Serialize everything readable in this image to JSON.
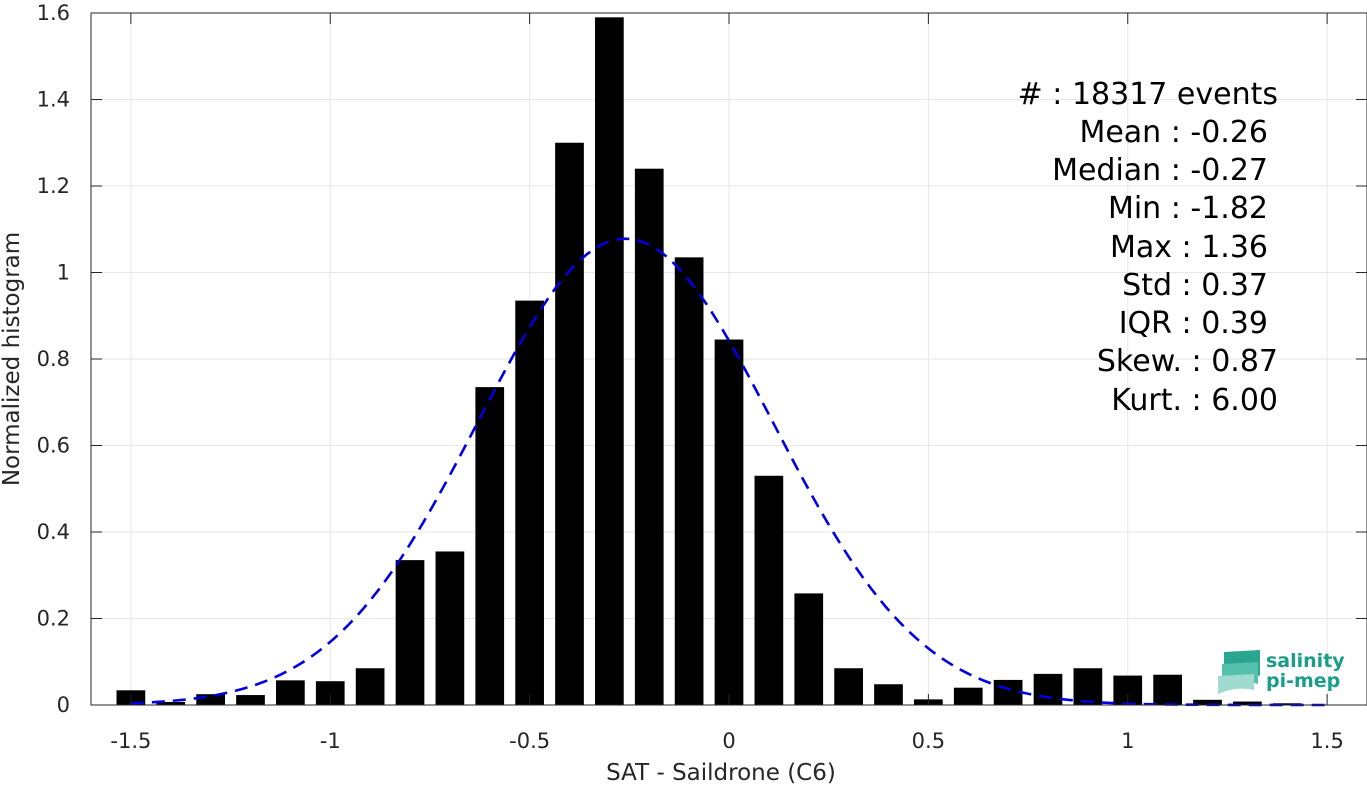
{
  "chart_data": {
    "type": "bar",
    "xlabel": "SAT - Saildrone (C6)",
    "ylabel": "Normalized histogram",
    "xlim": [
      -1.6,
      1.6
    ],
    "ylim": [
      0,
      1.6
    ],
    "xticks": [
      -1.5,
      -1,
      -0.5,
      0,
      0.5,
      1,
      1.5
    ],
    "xtick_labels": [
      "-1.5",
      "-1",
      "-0.5",
      "0",
      "0.5",
      "1",
      "1.5"
    ],
    "yticks": [
      0,
      0.2,
      0.4,
      0.6,
      0.8,
      1,
      1.2,
      1.4,
      1.6
    ],
    "ytick_labels": [
      "0",
      "0.2",
      "0.4",
      "0.6",
      "0.8",
      "1",
      "1.2",
      "1.4",
      "1.6"
    ],
    "grid": true,
    "bar_color": "#000000",
    "bars": {
      "x": [
        -1.5,
        -1.4,
        -1.3,
        -1.2,
        -1.1,
        -1.0,
        -0.9,
        -0.8,
        -0.7,
        -0.6,
        -0.5,
        -0.4,
        -0.3,
        -0.2,
        -0.1,
        0.0,
        0.1,
        0.2,
        0.3,
        0.4,
        0.5,
        0.6,
        0.7,
        0.8,
        0.9,
        1.0,
        1.1,
        1.2,
        1.3,
        1.4
      ],
      "values": [
        0.034,
        0.007,
        0.025,
        0.023,
        0.057,
        0.055,
        0.085,
        0.335,
        0.355,
        0.735,
        0.935,
        1.3,
        1.59,
        1.24,
        1.035,
        0.845,
        0.53,
        0.258,
        0.085,
        0.048,
        0.013,
        0.04,
        0.058,
        0.072,
        0.085,
        0.068,
        0.07,
        0.012,
        0.008,
        0.004
      ]
    },
    "fit_curve": {
      "type": "gaussian",
      "color": "#0000e0",
      "style": "dashed",
      "mean": -0.26,
      "std": 0.37,
      "x_range": [
        -1.5,
        1.5
      ]
    },
    "annotations": [
      "#  : 18317 events",
      "Mean : -0.26",
      "Median : -0.27",
      "Min : -1.82",
      "Max : 1.36",
      "Std : 0.37",
      "IQR : 0.39",
      "Skew. : 0.87",
      "Kurt. : 6.00"
    ]
  },
  "logo": {
    "line1": "salinity",
    "line2": "pi-mep"
  },
  "colors": {
    "grid": "#e6e6e6",
    "axis": "#262626",
    "logo": "#1a9e8a"
  }
}
